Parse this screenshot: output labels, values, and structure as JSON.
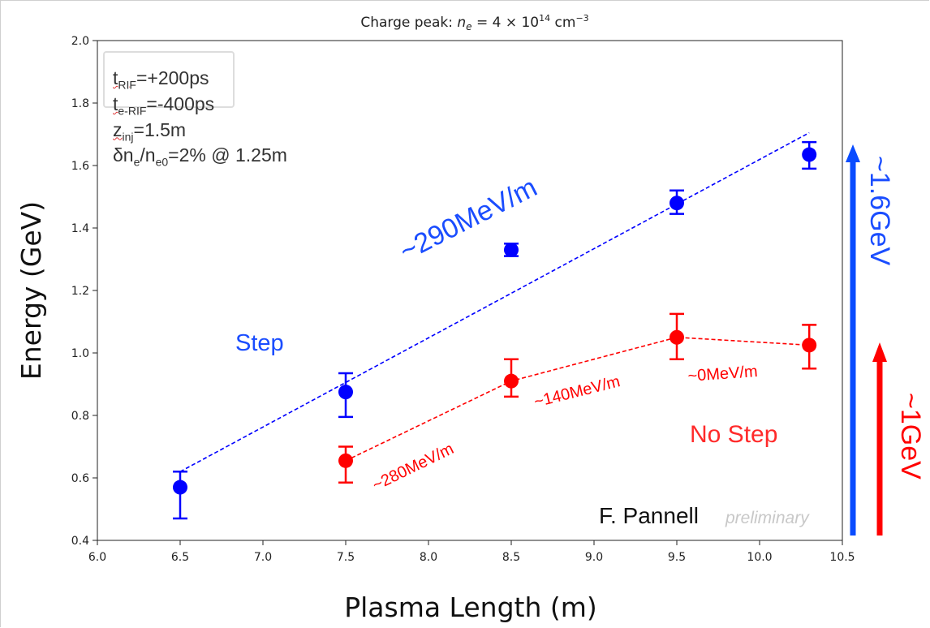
{
  "chart_data": {
    "type": "scatter",
    "title_prefix": "Charge peak: ",
    "title_var": "n",
    "title_sub": "e",
    "title_mid": " = 4 × 10",
    "title_exp": "14",
    "title_unit": " cm",
    "title_unit_exp": "−3",
    "xlabel": "Plasma Length (m)",
    "ylabel": "Energy (GeV)",
    "xlim": [
      6.0,
      10.5
    ],
    "ylim": [
      0.4,
      2.0
    ],
    "xticks": [
      6.0,
      6.5,
      7.0,
      7.5,
      8.0,
      8.5,
      9.0,
      9.5,
      10.0,
      10.5
    ],
    "xtick_labels": [
      "6.0",
      "6.5",
      "7.0",
      "7.5",
      "8.0",
      "8.5",
      "9.0",
      "9.5",
      "10.0",
      "10.5"
    ],
    "yticks": [
      0.4,
      0.6,
      0.8,
      1.0,
      1.2,
      1.4,
      1.6,
      1.8,
      2.0
    ],
    "ytick_labels": [
      "0.4",
      "0.6",
      "0.8",
      "1.0",
      "1.2",
      "1.4",
      "1.6",
      "1.8",
      "2.0"
    ],
    "grid": false,
    "series": [
      {
        "name": "Step",
        "color": "#0000ff",
        "x": [
          6.5,
          7.5,
          8.5,
          9.5,
          10.3
        ],
        "y": [
          0.57,
          0.875,
          1.33,
          1.48,
          1.635
        ],
        "err_low": [
          0.1,
          0.08,
          0.02,
          0.035,
          0.045
        ],
        "err_high": [
          0.05,
          0.06,
          0.02,
          0.04,
          0.04
        ],
        "fit": {
          "x": [
            6.5,
            10.3
          ],
          "y": [
            0.62,
            1.705
          ]
        }
      },
      {
        "name": "No Step",
        "color": "#ff0000",
        "x": [
          7.5,
          8.5,
          9.5,
          10.3
        ],
        "y": [
          0.655,
          0.91,
          1.05,
          1.025
        ],
        "err_low": [
          0.07,
          0.05,
          0.07,
          0.075
        ],
        "err_high": [
          0.045,
          0.07,
          0.075,
          0.065
        ],
        "connect": true
      }
    ],
    "annotations": {
      "step_rate": "~290MeV/m",
      "nostep_rate_1": "~280MeV/m",
      "nostep_rate_2": "~140MeV/m",
      "nostep_rate_3": "~0MeV/m",
      "step_label": "Step",
      "nostep_label": "No Step",
      "author": "F. Pannell",
      "watermark": "preliminary",
      "blue_arrow_label": "~1.6GeV",
      "red_arrow_label": "~1GeV"
    },
    "params": [
      {
        "base": "t",
        "sub": "RIF",
        "rest": "=+200ps"
      },
      {
        "base": "t",
        "sub": "e-RIF",
        "rest": "=-400ps"
      },
      {
        "base": "z",
        "sub": "inj",
        "rest": "=1.5m"
      },
      {
        "base": "δn",
        "sub": "e",
        "mid": "/n",
        "sub2": "e0",
        "rest": "=2% @ 1.25m"
      }
    ],
    "colors": {
      "blue": "#0000ff",
      "red": "#ff0000",
      "arrow_blue": "#0a4cff",
      "arrow_red": "#ff0000"
    }
  }
}
